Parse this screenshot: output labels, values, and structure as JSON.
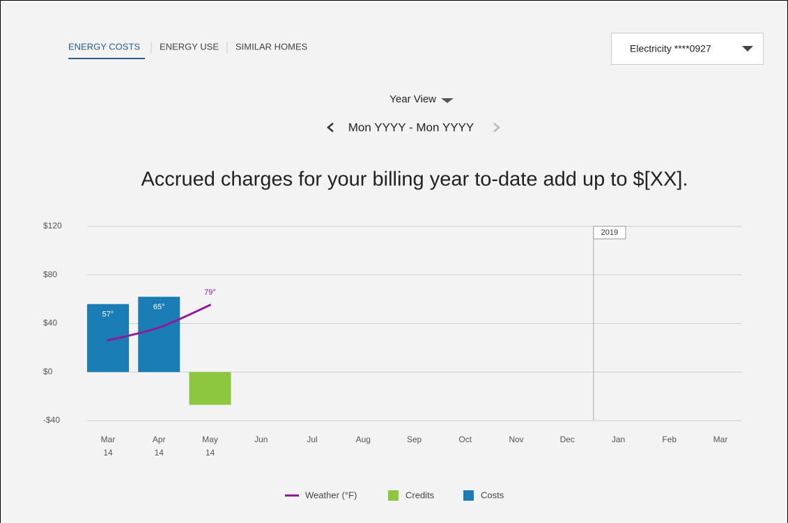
{
  "tabs": [
    "ENERGY COSTS",
    "ENERGY USE",
    "SIMILAR HOMES"
  ],
  "account_select": "Electricity ****0927",
  "view_select": "Year View",
  "date_range": "Mon YYYY - Mon YYYY",
  "headline": "Accrued charges for your billing year to-date add up to $[XX].",
  "chart_data": {
    "type": "bar",
    "categories": [
      "Mar 14",
      "Apr 14",
      "May 14",
      "Jun",
      "Jul",
      "Aug",
      "Sep",
      "Oct",
      "Nov",
      "Dec",
      "Jan",
      "Feb",
      "Mar"
    ],
    "series": [
      {
        "name": "Weather (°F)",
        "color": "#8e1b9c",
        "type": "line",
        "axis": "y2",
        "values": [
          57,
          65,
          79,
          null,
          null,
          null,
          null,
          null,
          null,
          null,
          null,
          null,
          null
        ],
        "value_labels": [
          "57°",
          "65°",
          "79°",
          null,
          null,
          null,
          null,
          null,
          null,
          null,
          null,
          null,
          null
        ]
      },
      {
        "name": "Credits",
        "color": "#8dc63f",
        "values": [
          null,
          null,
          -27,
          null,
          null,
          null,
          null,
          null,
          null,
          null,
          null,
          null,
          null
        ]
      },
      {
        "name": "Costs",
        "color": "#1a7db5",
        "values": [
          56,
          62,
          null,
          null,
          null,
          null,
          null,
          null,
          null,
          null,
          null,
          null,
          null
        ]
      }
    ],
    "ylim": [
      -40,
      120
    ],
    "yticks": [
      {
        "value": -40,
        "label": "-$40"
      },
      {
        "value": 0,
        "label": "$0"
      },
      {
        "value": 40,
        "label": "$40"
      },
      {
        "value": 80,
        "label": "$80"
      },
      {
        "value": 120,
        "label": "$120"
      }
    ],
    "y2lim": [
      7,
      128
    ],
    "grid": true,
    "annotation": "2019"
  }
}
